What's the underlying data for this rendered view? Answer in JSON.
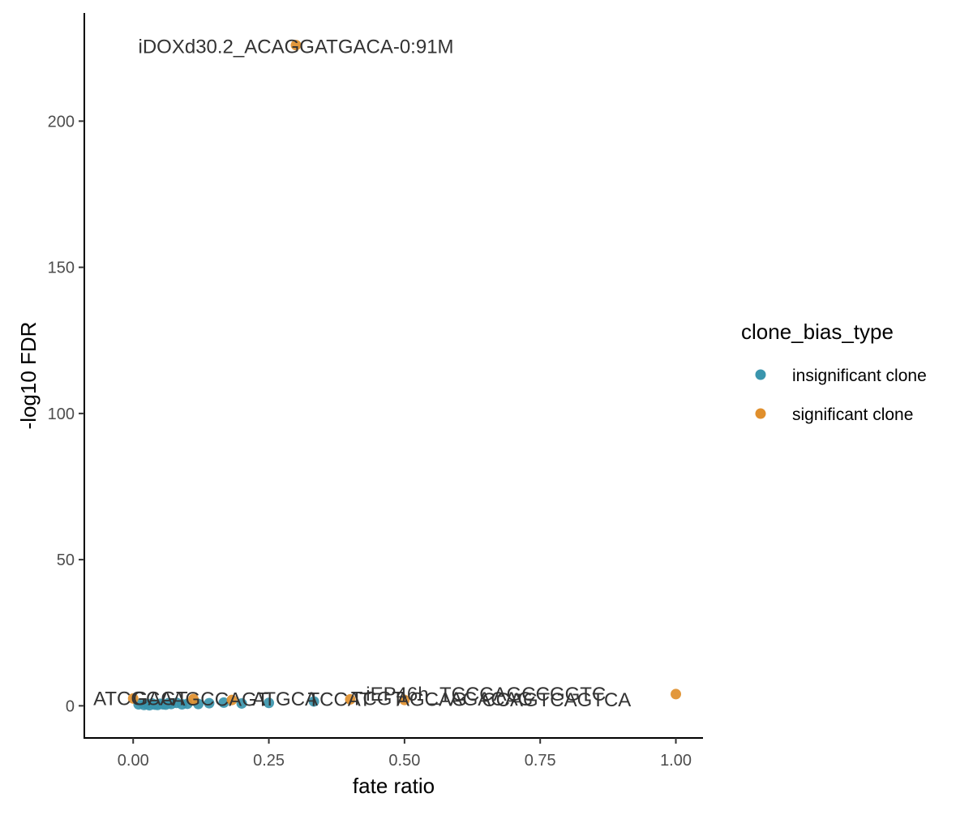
{
  "chart_data": {
    "type": "scatter",
    "xlabel": "fate ratio",
    "ylabel": "-log10 FDR",
    "xlim": [
      -0.09,
      1.05
    ],
    "ylim": [
      -11,
      237
    ],
    "x_ticks": [
      0.0,
      0.25,
      0.5,
      0.75,
      1.0
    ],
    "x_tick_labels": [
      "0.00",
      "0.25",
      "0.50",
      "0.75",
      "1.00"
    ],
    "y_ticks": [
      0,
      50,
      100,
      150,
      200
    ],
    "y_tick_labels": [
      "0",
      "50",
      "100",
      "150",
      "200"
    ],
    "grid": false,
    "legend": {
      "title": "clone_bias_type",
      "placement": "right",
      "entries": [
        "insignificant clone",
        "significant clone"
      ]
    },
    "colors": {
      "insignificant clone": "#3a95ad",
      "significant clone": "#e08f2c",
      "axis": "#000000",
      "tick_text": "#4d4d4d",
      "label_text": "#333333"
    },
    "series": [
      {
        "name": "insignificant clone",
        "x": [
          0.01,
          0.02,
          0.025,
          0.03,
          0.035,
          0.04,
          0.045,
          0.05,
          0.055,
          0.06,
          0.065,
          0.07,
          0.08,
          0.09,
          0.1,
          0.12,
          0.14,
          0.167,
          0.2,
          0.25,
          0.333
        ],
        "y": [
          0.5,
          0.3,
          0.6,
          0.2,
          0.8,
          0.4,
          0.3,
          0.7,
          0.5,
          0.4,
          0.9,
          0.6,
          1.0,
          0.5,
          0.7,
          0.6,
          0.9,
          1.1,
          0.8,
          1.0,
          1.5
        ]
      },
      {
        "name": "significant clone",
        "x": [
          0.0,
          0.111,
          0.182,
          0.3,
          0.4,
          0.5,
          1.0
        ],
        "y": [
          2.5,
          2.3,
          2.0,
          226,
          2.2,
          2.0,
          4.0
        ]
      }
    ],
    "annotations": [
      {
        "text": "iDOXd30.2_ACAGGATGACA-0:91M",
        "x": 0.3,
        "y": 226
      },
      {
        "text": "ATCGCA",
        "x": 0.0,
        "y": 2.5
      },
      {
        "text": "GAGT",
        "x": 0.05,
        "y": 2.5
      },
      {
        "text": "AGC",
        "x": 0.111,
        "y": 2.3
      },
      {
        "text": "CAGT",
        "x": 0.2,
        "y": 2.2
      },
      {
        "text": "ATGCA",
        "x": 0.28,
        "y": 2.3
      },
      {
        "text": "TCCAT",
        "x": 0.38,
        "y": 2.2
      },
      {
        "text": "TCGT",
        "x": 0.45,
        "y": 2.4
      },
      {
        "text": "AGCAG",
        "x": 0.55,
        "y": 2.2
      },
      {
        "text": "iEP46h_TCCCAGCCGGTC",
        "x": 0.65,
        "y": 4.0
      },
      {
        "text": "AGACAG",
        "x": 0.66,
        "y": 2.3
      },
      {
        "text": "CCAGTCAGTCA",
        "x": 0.78,
        "y": 2.0
      }
    ]
  }
}
